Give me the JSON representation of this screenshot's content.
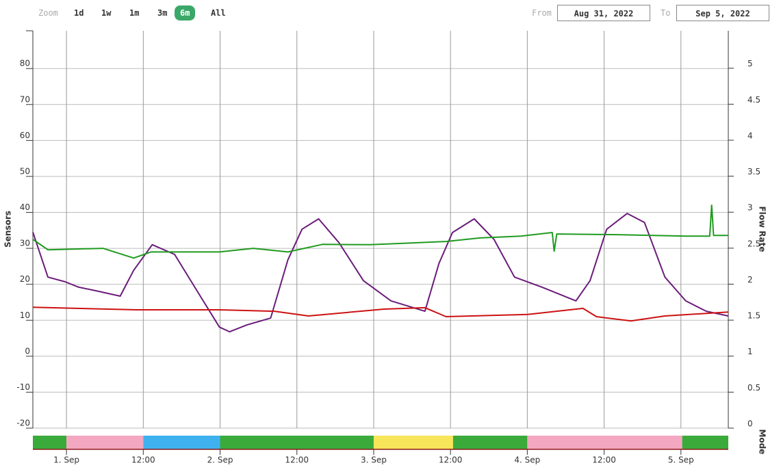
{
  "toolbar": {
    "zoom_label": "Zoom",
    "buttons": [
      "1d",
      "1w",
      "1m",
      "3m",
      "6m",
      "All"
    ],
    "selected": "6m",
    "from_label": "From",
    "from": "Aug 31, 2022",
    "to_label": "To",
    "to": "Sep 5, 2022"
  },
  "chart_data": {
    "type": "line",
    "ylabel": "Sensors",
    "y2label": "Flow Rate",
    "xlim": [
      18.75,
      127.4
    ],
    "xticks": [
      {
        "value": 24,
        "label": "1. Sep"
      },
      {
        "value": 36,
        "label": "12:00"
      },
      {
        "value": 48,
        "label": "2. Sep"
      },
      {
        "value": 60,
        "label": "12:00"
      },
      {
        "value": 72,
        "label": "3. Sep"
      },
      {
        "value": 84,
        "label": "12:00"
      },
      {
        "value": 96,
        "label": "4. Sep"
      },
      {
        "value": 108,
        "label": "12:00"
      },
      {
        "value": 120,
        "label": "5. Sep"
      }
    ],
    "ylim": [
      -20,
      90.5
    ],
    "yticks": [
      -20,
      -10,
      0,
      10,
      20,
      30,
      40,
      50,
      60,
      70,
      80
    ],
    "y2lim": [
      0,
      5.52
    ],
    "y2ticks": [
      0,
      0.5,
      1,
      1.5,
      2,
      2.5,
      3,
      3.5,
      4,
      4.5,
      5
    ],
    "grid": true,
    "series": [
      {
        "color": "#6a1b7a",
        "x": [
          18.75,
          21.1,
          23.8,
          25.9,
          28.6,
          32.4,
          34.5,
          37.4,
          40.9,
          44.7,
          47.9,
          49.5,
          52.2,
          55.9,
          58.6,
          60.8,
          63.4,
          66.6,
          70.4,
          74.7,
          80.0,
          82.2,
          84.3,
          87.7,
          90.8,
          94.0,
          98.3,
          103.6,
          105.8,
          108.4,
          111.6,
          114.3,
          117.5,
          120.75,
          123.96,
          127.4
        ],
        "values": [
          34.5,
          22,
          20.7,
          19.2,
          18.2,
          16.7,
          23.9,
          31,
          28.3,
          17.3,
          8.1,
          6.8,
          8.7,
          10.6,
          26.8,
          35.3,
          38.2,
          31.5,
          21,
          15.4,
          12.5,
          25.8,
          34.4,
          38.2,
          32.5,
          22,
          19.2,
          15.4,
          21,
          35.3,
          39.7,
          37.2,
          22,
          15.4,
          12.5,
          11.2
        ]
      },
      {
        "color": "#1f9a1f",
        "x": [
          18.75,
          21.1,
          29.7,
          34.5,
          37.2,
          47.9,
          53.2,
          58.6,
          64.0,
          71.5,
          77.9,
          83.3,
          88.6,
          95.0,
          99.9,
          100.2,
          100.6,
          110.0,
          120.75,
          124.5,
          124.8,
          125.1,
          127.4
        ],
        "values": [
          32.5,
          29.6,
          30,
          27.3,
          29,
          29,
          30,
          29,
          31.1,
          31,
          31.5,
          31.9,
          32.9,
          33.4,
          34.4,
          29.2,
          34,
          33.8,
          33.4,
          33.4,
          42,
          33.6,
          33.6
        ]
      },
      {
        "color": "#cc1111",
        "x": [
          18.75,
          35.0,
          47.9,
          56.5,
          61.8,
          73.6,
          80.0,
          83.3,
          96.1,
          104.7,
          106.8,
          112.2,
          117.5,
          127.4
        ],
        "values": [
          13.6,
          12.9,
          12.9,
          12.5,
          11.2,
          13.1,
          13.5,
          11,
          11.6,
          13.3,
          11,
          9.8,
          11.2,
          12.3
        ]
      }
    ],
    "mode": {
      "label": "Mode",
      "segments": [
        {
          "start": 18.75,
          "end": 24,
          "color": "#3aaa3a"
        },
        {
          "start": 24,
          "end": 36,
          "color": "#f4a7c0"
        },
        {
          "start": 36,
          "end": 48,
          "color": "#3fb1ef"
        },
        {
          "start": 48,
          "end": 72,
          "color": "#3aaa3a"
        },
        {
          "start": 72,
          "end": 84.4,
          "color": "#f7e55a"
        },
        {
          "start": 84.4,
          "end": 96,
          "color": "#3aaa3a"
        },
        {
          "start": 96,
          "end": 120.2,
          "color": "#f4a7c0"
        },
        {
          "start": 120.2,
          "end": 127.4,
          "color": "#3aaa3a"
        }
      ]
    }
  }
}
